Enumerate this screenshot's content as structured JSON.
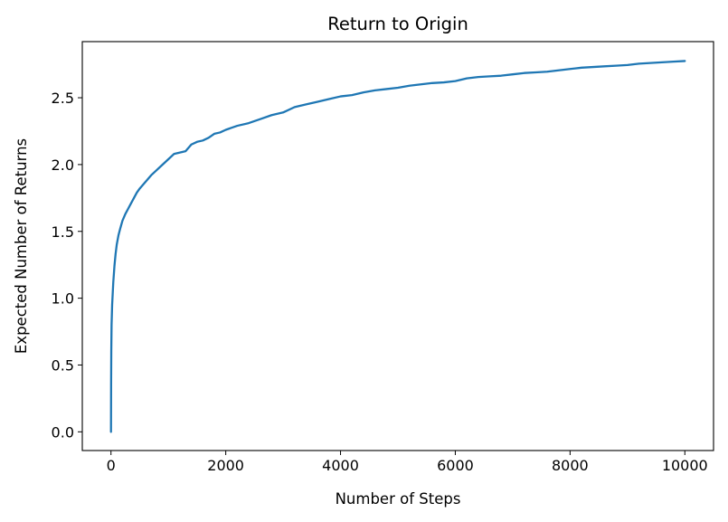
{
  "chart_data": {
    "type": "line",
    "title": "Return to Origin",
    "xlabel": "Number of Steps",
    "ylabel": "Expected Number of Returns",
    "xlim": [
      -500,
      10500
    ],
    "ylim": [
      -0.14,
      2.92
    ],
    "xticks": [
      0,
      2000,
      4000,
      6000,
      8000,
      10000
    ],
    "yticks": [
      0.0,
      0.5,
      1.0,
      1.5,
      2.0,
      2.5
    ],
    "xtick_labels": [
      "0",
      "2000",
      "4000",
      "6000",
      "8000",
      "10000"
    ],
    "ytick_labels": [
      "0.0",
      "0.5",
      "1.0",
      "1.5",
      "2.0",
      "2.5"
    ],
    "grid": false,
    "legend": false,
    "color": "#1f77b4",
    "series": [
      {
        "x": [
          0,
          2,
          5,
          10,
          20,
          40,
          60,
          80,
          100,
          130,
          160,
          200,
          250,
          300,
          350,
          400,
          450,
          500,
          600,
          700,
          800,
          900,
          1000,
          1100,
          1200,
          1300,
          1400,
          1500,
          1600,
          1700,
          1800,
          1900,
          2000,
          2200,
          2400,
          2600,
          2800,
          3000,
          3200,
          3400,
          3600,
          3800,
          4000,
          4200,
          4400,
          4600,
          4800,
          5000,
          5200,
          5400,
          5600,
          5800,
          6000,
          6200,
          6400,
          6600,
          6800,
          7000,
          7200,
          7400,
          7600,
          7800,
          8000,
          8200,
          8400,
          8600,
          8800,
          9000,
          9200,
          9400,
          9600,
          9800,
          10000
        ],
        "y": [
          0.0,
          0.35,
          0.6,
          0.8,
          0.95,
          1.12,
          1.24,
          1.33,
          1.4,
          1.47,
          1.52,
          1.58,
          1.63,
          1.67,
          1.71,
          1.75,
          1.79,
          1.82,
          1.87,
          1.92,
          1.96,
          2.0,
          2.04,
          2.08,
          2.09,
          2.1,
          2.15,
          2.17,
          2.18,
          2.2,
          2.23,
          2.24,
          2.26,
          2.29,
          2.31,
          2.34,
          2.37,
          2.39,
          2.43,
          2.45,
          2.47,
          2.49,
          2.51,
          2.52,
          2.54,
          2.555,
          2.565,
          2.575,
          2.59,
          2.6,
          2.61,
          2.615,
          2.625,
          2.645,
          2.655,
          2.66,
          2.665,
          2.675,
          2.685,
          2.69,
          2.695,
          2.705,
          2.715,
          2.725,
          2.73,
          2.735,
          2.74,
          2.745,
          2.755,
          2.76,
          2.765,
          2.77,
          2.775
        ]
      }
    ]
  }
}
